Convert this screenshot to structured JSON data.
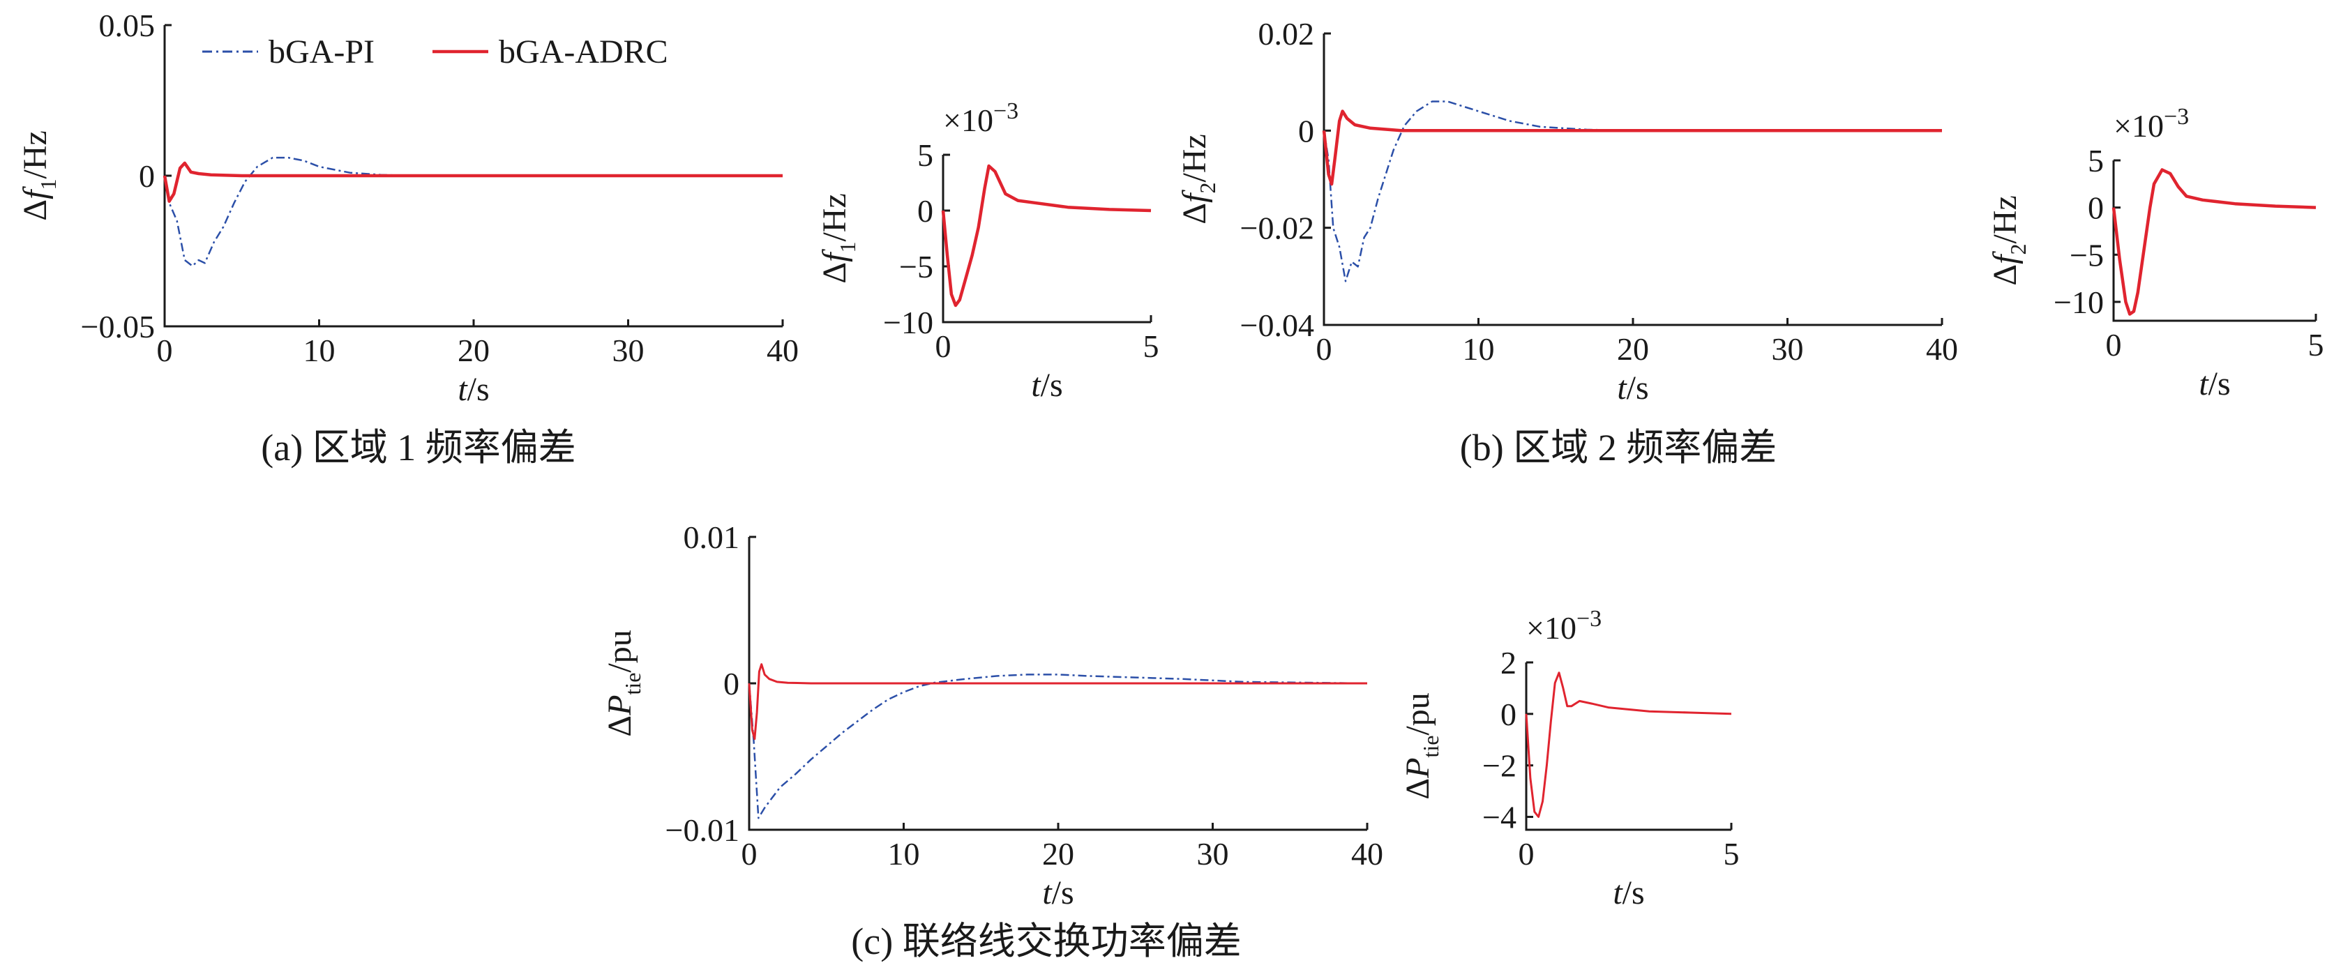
{
  "colors": {
    "pi": "#2b4fa8",
    "adrc": "#e0242f",
    "axis": "#1a1a1a"
  },
  "legend": [
    {
      "key": "pi",
      "label": "bGA-PI",
      "style": "dash-dot"
    },
    {
      "key": "adrc",
      "label": "bGA-ADRC",
      "style": "solid"
    }
  ],
  "chart_data": [
    {
      "id": "a-main",
      "type": "line",
      "caption": "(a) 区域 1 频率偏差",
      "xlabel": "t/s",
      "ylabel": "Δf1/Hz",
      "xlim": [
        0,
        40
      ],
      "ylim": [
        -0.05,
        0.05
      ],
      "x_ticks": [
        "0",
        "10",
        "20",
        "30",
        "40"
      ],
      "y_ticks": [
        "−0.05",
        "0",
        "0.05"
      ],
      "series": [
        {
          "name": "bGA-PI",
          "x": [
            0,
            0.3,
            0.8,
            1.3,
            1.8,
            2.2,
            2.6,
            3.2,
            3.8,
            4.5,
            5.2,
            6,
            7,
            8,
            9,
            10,
            11,
            12,
            14,
            16,
            20,
            30,
            40
          ],
          "y": [
            0,
            -0.009,
            -0.015,
            -0.028,
            -0.03,
            -0.028,
            -0.029,
            -0.022,
            -0.017,
            -0.009,
            -0.002,
            0.003,
            0.006,
            0.006,
            0.005,
            0.003,
            0.002,
            0.001,
            0.0003,
            0,
            0,
            0,
            0
          ]
        },
        {
          "name": "bGA-ADRC",
          "x": [
            0,
            0.3,
            0.6,
            1.0,
            1.3,
            1.7,
            2.2,
            3,
            5,
            10,
            20,
            30,
            40
          ],
          "y": [
            0,
            -0.0085,
            -0.006,
            0.0025,
            0.0042,
            0.0012,
            0.0007,
            0.0003,
            0,
            0,
            0,
            0,
            0
          ]
        }
      ]
    },
    {
      "id": "a-inset",
      "type": "line",
      "xlabel": "t/s",
      "ylabel": "Δf1/Hz",
      "xlim": [
        0,
        5
      ],
      "ylim": [
        -10,
        5
      ],
      "y_exponent": "×10−3",
      "x_ticks": [
        "0",
        "5"
      ],
      "y_ticks": [
        "5",
        "0",
        "−5",
        "−10"
      ],
      "series": [
        {
          "name": "bGA-ADRC",
          "x": [
            0,
            0.1,
            0.2,
            0.3,
            0.4,
            0.55,
            0.7,
            0.85,
            1.0,
            1.1,
            1.25,
            1.5,
            1.8,
            2.2,
            3,
            4,
            5
          ],
          "y": [
            0,
            -4,
            -7.5,
            -8.5,
            -8,
            -6,
            -4,
            -1.5,
            2,
            4,
            3.5,
            1.5,
            0.9,
            0.7,
            0.3,
            0.1,
            0
          ]
        }
      ]
    },
    {
      "id": "b-main",
      "type": "line",
      "caption": "(b) 区域 2 频率偏差",
      "xlabel": "t/s",
      "ylabel": "Δf2/Hz",
      "xlim": [
        0,
        40
      ],
      "ylim": [
        -0.04,
        0.02
      ],
      "x_ticks": [
        "0",
        "10",
        "20",
        "30",
        "40"
      ],
      "y_ticks": [
        "0.02",
        "0",
        "−0.02",
        "−0.04"
      ],
      "series": [
        {
          "name": "bGA-PI",
          "x": [
            0,
            0.3,
            0.6,
            1.0,
            1.4,
            1.8,
            2.2,
            2.6,
            3.0,
            3.5,
            4,
            4.5,
            5.2,
            6,
            7,
            8,
            9,
            10,
            11,
            12,
            14,
            17,
            20,
            30,
            40
          ],
          "y": [
            0,
            -0.006,
            -0.02,
            -0.024,
            -0.031,
            -0.027,
            -0.028,
            -0.022,
            -0.02,
            -0.014,
            -0.009,
            -0.004,
            0.001,
            0.004,
            0.006,
            0.006,
            0.005,
            0.004,
            0.003,
            0.002,
            0.0008,
            0.0002,
            0,
            0,
            0
          ]
        },
        {
          "name": "bGA-ADRC",
          "x": [
            0,
            0.3,
            0.5,
            0.7,
            1.0,
            1.2,
            1.5,
            2,
            3,
            5,
            10,
            20,
            30,
            40
          ],
          "y": [
            0,
            -0.009,
            -0.011,
            -0.006,
            0.002,
            0.004,
            0.0025,
            0.0012,
            0.0005,
            0,
            0,
            0,
            0,
            0
          ]
        }
      ]
    },
    {
      "id": "b-inset",
      "type": "line",
      "xlabel": "t/s",
      "ylabel": "Δf2/Hz",
      "xlim": [
        0,
        5
      ],
      "ylim": [
        -12,
        5
      ],
      "y_exponent": "×10−3",
      "x_ticks": [
        "0",
        "5"
      ],
      "y_ticks": [
        "5",
        "0",
        "−5",
        "−10"
      ],
      "series": [
        {
          "name": "bGA-ADRC",
          "x": [
            0,
            0.15,
            0.3,
            0.4,
            0.5,
            0.6,
            0.75,
            0.9,
            1.0,
            1.2,
            1.4,
            1.6,
            1.8,
            2.2,
            3,
            4,
            5
          ],
          "y": [
            0,
            -5.5,
            -10,
            -11.3,
            -11,
            -9,
            -4.5,
            0,
            2.5,
            4,
            3.6,
            2.2,
            1.2,
            0.8,
            0.4,
            0.15,
            0
          ]
        }
      ]
    },
    {
      "id": "c-main",
      "type": "line",
      "caption": "(c) 联络线交换功率偏差",
      "xlabel": "t/s",
      "ylabel": "ΔPtie/pu",
      "xlim": [
        0,
        40
      ],
      "ylim": [
        -0.01,
        0.01
      ],
      "x_ticks": [
        "0",
        "10",
        "20",
        "30",
        "40"
      ],
      "y_ticks": [
        "0.01",
        "0",
        "−0.01"
      ],
      "series": [
        {
          "name": "bGA-PI",
          "x": [
            0,
            0.3,
            0.6,
            1,
            1.5,
            2,
            3,
            4,
            5,
            6,
            7,
            8,
            9,
            10,
            11,
            12,
            14,
            16,
            18,
            20,
            22,
            25,
            28,
            32,
            36,
            40
          ],
          "y": [
            0,
            -0.004,
            -0.0092,
            -0.0085,
            -0.0078,
            -0.0071,
            -0.0062,
            -0.0052,
            -0.0043,
            -0.0034,
            -0.0026,
            -0.0018,
            -0.0011,
            -0.0006,
            -0.0002,
            5e-05,
            0.0003,
            0.0005,
            0.0006,
            0.0006,
            0.0005,
            0.0004,
            0.0003,
            0.0001,
            5e-05,
            0
          ]
        },
        {
          "name": "bGA-ADRC",
          "x": [
            0,
            0.2,
            0.35,
            0.5,
            0.65,
            0.8,
            1.0,
            1.3,
            1.8,
            2.5,
            4,
            10,
            20,
            30,
            40
          ],
          "y": [
            0,
            -0.0032,
            -0.0038,
            -0.002,
            0.0008,
            0.0013,
            0.0006,
            0.0003,
            0.0001,
            4e-05,
            0,
            0,
            0,
            0,
            0
          ]
        }
      ]
    },
    {
      "id": "c-inset",
      "type": "line",
      "xlabel": "t/s",
      "ylabel": "ΔPtie/pu",
      "xlim": [
        0,
        5
      ],
      "ylim": [
        -4.5,
        2
      ],
      "y_exponent": "×10−3",
      "x_ticks": [
        "0",
        "5"
      ],
      "y_ticks": [
        "2",
        "0",
        "−2",
        "−4"
      ],
      "series": [
        {
          "name": "bGA-ADRC",
          "x": [
            0,
            0.1,
            0.2,
            0.3,
            0.4,
            0.5,
            0.6,
            0.7,
            0.8,
            0.9,
            1.0,
            1.1,
            1.3,
            1.6,
            2,
            3,
            4,
            5
          ],
          "y": [
            0,
            -2.5,
            -3.8,
            -4.0,
            -3.4,
            -2.0,
            -0.3,
            1.2,
            1.6,
            1.0,
            0.3,
            0.3,
            0.5,
            0.4,
            0.25,
            0.1,
            0.05,
            0
          ]
        }
      ]
    }
  ]
}
